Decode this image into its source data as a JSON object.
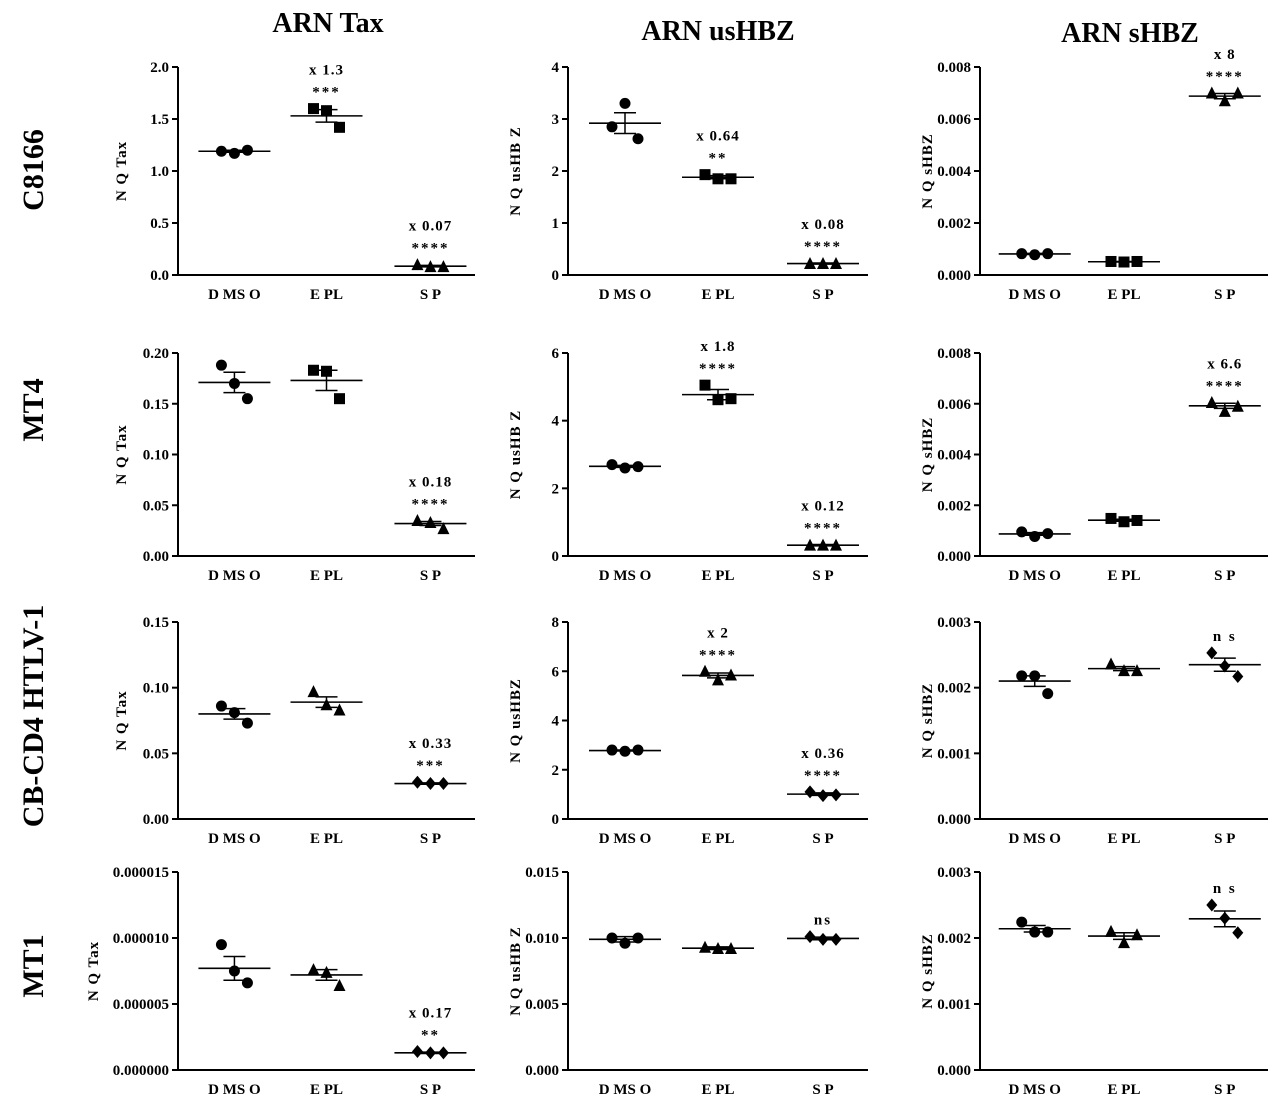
{
  "figure": {
    "column_titles": [
      "ARN Tax",
      "ARN usHBZ",
      "ARN sHBZ"
    ],
    "row_titles": [
      "C8166",
      "MT4",
      "CB-CD4 HTLV-1",
      "MT1"
    ]
  },
  "chart_data": [
    {
      "row": "C8166",
      "col": "ARN Tax",
      "type": "scatter",
      "ylabel": "N Q Tax",
      "ylim": [
        0,
        2.0
      ],
      "ytick_labels": [
        "0.0",
        "0.5",
        "1.0",
        "1.5",
        "2.0"
      ],
      "categories": [
        "D MS O",
        "E PL",
        "S P"
      ],
      "series": [
        {
          "category": "D MS O",
          "marker": "circle",
          "points": [
            1.19,
            1.17,
            1.2
          ],
          "mean": 1.19,
          "sem": 0.01
        },
        {
          "category": "E PL",
          "marker": "square",
          "points": [
            1.6,
            1.58,
            1.42
          ],
          "mean": 1.53,
          "sem": 0.06,
          "fold": "x 1.3",
          "sig": "***"
        },
        {
          "category": "S P",
          "marker": "triangle",
          "points": [
            0.1,
            0.08,
            0.08
          ],
          "mean": 0.085,
          "sem": 0.007,
          "fold": "x 0.07",
          "sig": "****"
        }
      ]
    },
    {
      "row": "C8166",
      "col": "ARN usHBZ",
      "type": "scatter",
      "ylabel": "N Q usHB Z",
      "ylim": [
        0,
        4
      ],
      "ytick_labels": [
        "0",
        "1",
        "2",
        "3",
        "4"
      ],
      "categories": [
        "D MS O",
        "E PL",
        "S P"
      ],
      "series": [
        {
          "category": "D MS O",
          "marker": "circle",
          "points": [
            2.85,
            3.3,
            2.62
          ],
          "mean": 2.92,
          "sem": 0.2
        },
        {
          "category": "E PL",
          "marker": "square",
          "points": [
            1.93,
            1.85,
            1.85
          ],
          "mean": 1.88,
          "sem": 0.03,
          "fold": "x 0.64",
          "sig": "**"
        },
        {
          "category": "S P",
          "marker": "triangle",
          "points": [
            0.22,
            0.22,
            0.22
          ],
          "mean": 0.22,
          "sem": 0.01,
          "fold": "x 0.08",
          "sig": "****"
        }
      ]
    },
    {
      "row": "C8166",
      "col": "ARN sHBZ",
      "type": "scatter",
      "ylabel": "N Q sHBZ",
      "ylim": [
        0,
        0.008
      ],
      "ytick_labels": [
        "0.000",
        "0.002",
        "0.004",
        "0.006",
        "0.008"
      ],
      "categories": [
        "D MS O",
        "E PL",
        "S P"
      ],
      "series": [
        {
          "category": "D MS O",
          "marker": "circle",
          "points": [
            0.00082,
            0.00078,
            0.00082
          ],
          "mean": 0.00081,
          "sem": 2e-05
        },
        {
          "category": "E PL",
          "marker": "square",
          "points": [
            0.00052,
            0.0005,
            0.00052
          ],
          "mean": 0.00051,
          "sem": 1e-05
        },
        {
          "category": "S P",
          "marker": "triangle",
          "points": [
            0.007,
            0.0067,
            0.007
          ],
          "mean": 0.00688,
          "sem": 0.0001,
          "fold": "x 8",
          "sig": "****"
        }
      ]
    },
    {
      "row": "MT4",
      "col": "ARN Tax",
      "type": "scatter",
      "ylabel": "N Q Tax",
      "ylim": [
        0,
        0.2
      ],
      "ytick_labels": [
        "0.00",
        "0.05",
        "0.10",
        "0.15",
        "0.20"
      ],
      "categories": [
        "D MS O",
        "E PL",
        "S P"
      ],
      "series": [
        {
          "category": "D MS O",
          "marker": "circle",
          "points": [
            0.188,
            0.17,
            0.155
          ],
          "mean": 0.171,
          "sem": 0.01
        },
        {
          "category": "E PL",
          "marker": "square",
          "points": [
            0.183,
            0.182,
            0.155
          ],
          "mean": 0.173,
          "sem": 0.01
        },
        {
          "category": "S P",
          "marker": "triangle",
          "points": [
            0.035,
            0.033,
            0.027
          ],
          "mean": 0.032,
          "sem": 0.002,
          "fold": "x 0.18",
          "sig": "****"
        }
      ]
    },
    {
      "row": "MT4",
      "col": "ARN usHBZ",
      "type": "scatter",
      "ylabel": "N Q usHB Z",
      "ylim": [
        0,
        6
      ],
      "ytick_labels": [
        "0",
        "2",
        "4",
        "6"
      ],
      "categories": [
        "D MS O",
        "E PL",
        "S P"
      ],
      "series": [
        {
          "category": "D MS O",
          "marker": "circle",
          "points": [
            2.7,
            2.6,
            2.64
          ],
          "mean": 2.65,
          "sem": 0.03
        },
        {
          "category": "E PL",
          "marker": "square",
          "points": [
            5.05,
            4.62,
            4.65
          ],
          "mean": 4.77,
          "sem": 0.15,
          "fold": "x 1.8",
          "sig": "****"
        },
        {
          "category": "S P",
          "marker": "triangle",
          "points": [
            0.32,
            0.32,
            0.32
          ],
          "mean": 0.32,
          "sem": 0.02,
          "fold": "x 0.12",
          "sig": "****"
        }
      ]
    },
    {
      "row": "MT4",
      "col": "ARN sHBZ",
      "type": "scatter",
      "ylabel": "N Q sHBZ",
      "ylim": [
        0,
        0.008
      ],
      "ytick_labels": [
        "0.000",
        "0.002",
        "0.004",
        "0.006",
        "0.008"
      ],
      "categories": [
        "D MS O",
        "E PL",
        "S P"
      ],
      "series": [
        {
          "category": "D MS O",
          "marker": "circle",
          "points": [
            0.00095,
            0.00077,
            0.00088
          ],
          "mean": 0.00087,
          "sem": 5e-05
        },
        {
          "category": "E PL",
          "marker": "square",
          "points": [
            0.00148,
            0.00135,
            0.0014
          ],
          "mean": 0.00141,
          "sem": 4e-05
        },
        {
          "category": "S P",
          "marker": "triangle",
          "points": [
            0.00605,
            0.0057,
            0.0059
          ],
          "mean": 0.00592,
          "sem": 0.0001,
          "fold": "x 6.6",
          "sig": "****"
        }
      ]
    },
    {
      "row": "CB-CD4 HTLV-1",
      "col": "ARN Tax",
      "type": "scatter",
      "ylabel": "N Q Tax",
      "ylim": [
        0,
        0.15
      ],
      "ytick_labels": [
        "0.00",
        "0.05",
        "0.10",
        "0.15"
      ],
      "categories": [
        "D MS O",
        "E PL",
        "S P"
      ],
      "series": [
        {
          "category": "D MS O",
          "marker": "circle",
          "points": [
            0.086,
            0.081,
            0.073
          ],
          "mean": 0.08,
          "sem": 0.004
        },
        {
          "category": "E PL",
          "marker": "triangle",
          "points": [
            0.097,
            0.087,
            0.083
          ],
          "mean": 0.089,
          "sem": 0.004
        },
        {
          "category": "S P",
          "marker": "diamond",
          "points": [
            0.028,
            0.027,
            0.027
          ],
          "mean": 0.027,
          "sem": 0.0005,
          "fold": "x 0.33",
          "sig": "***"
        }
      ]
    },
    {
      "row": "CB-CD4 HTLV-1",
      "col": "ARN usHBZ",
      "type": "scatter",
      "ylabel": "N Q usHBZ",
      "ylim": [
        0,
        8
      ],
      "ytick_labels": [
        "0",
        "2",
        "4",
        "6",
        "8"
      ],
      "categories": [
        "D MS O",
        "E PL",
        "S P"
      ],
      "series": [
        {
          "category": "D MS O",
          "marker": "circle",
          "points": [
            2.8,
            2.75,
            2.8
          ],
          "mean": 2.78,
          "sem": 0.02
        },
        {
          "category": "E PL",
          "marker": "triangle",
          "points": [
            6.0,
            5.65,
            5.85
          ],
          "mean": 5.83,
          "sem": 0.1,
          "fold": "x 2",
          "sig": "****"
        },
        {
          "category": "S P",
          "marker": "diamond",
          "points": [
            1.1,
            0.95,
            0.98
          ],
          "mean": 1.01,
          "sem": 0.05,
          "fold": "x 0.36",
          "sig": "****"
        }
      ]
    },
    {
      "row": "CB-CD4 HTLV-1",
      "col": "ARN sHBZ",
      "type": "scatter",
      "ylabel": "N Q sHBZ",
      "ylim": [
        0,
        0.003
      ],
      "ytick_labels": [
        "0.000",
        "0.001",
        "0.002",
        "0.003"
      ],
      "categories": [
        "D MS O",
        "E PL",
        "S P"
      ],
      "series": [
        {
          "category": "D MS O",
          "marker": "circle",
          "points": [
            0.00218,
            0.00218,
            0.00191
          ],
          "mean": 0.0021,
          "sem": 8e-05
        },
        {
          "category": "E PL",
          "marker": "triangle",
          "points": [
            0.00236,
            0.00226,
            0.00226
          ],
          "mean": 0.00229,
          "sem": 3e-05
        },
        {
          "category": "S P",
          "marker": "diamond",
          "points": [
            0.00253,
            0.00233,
            0.00217
          ],
          "mean": 0.00235,
          "sem": 0.0001,
          "sig": "n s"
        }
      ]
    },
    {
      "row": "MT1",
      "col": "ARN Tax",
      "type": "scatter",
      "ylabel": "N Q Tax",
      "ylim": [
        0,
        1.5e-05
      ],
      "ytick_labels": [
        "0.000000",
        "0.000005",
        "0.000010",
        "0.000015"
      ],
      "categories": [
        "D MS O",
        "E PL",
        "S P"
      ],
      "series": [
        {
          "category": "D MS O",
          "marker": "circle",
          "points": [
            9.5e-06,
            7.5e-06,
            6.6e-06
          ],
          "mean": 7.7e-06,
          "sem": 9e-07
        },
        {
          "category": "E PL",
          "marker": "triangle",
          "points": [
            7.6e-06,
            7.4e-06,
            6.4e-06
          ],
          "mean": 7.2e-06,
          "sem": 4e-07
        },
        {
          "category": "S P",
          "marker": "diamond",
          "points": [
            1.4e-06,
            1.3e-06,
            1.3e-06
          ],
          "mean": 1.3e-06,
          "sem": 5e-08,
          "fold": "x 0.17",
          "sig": "**"
        }
      ]
    },
    {
      "row": "MT1",
      "col": "ARN usHBZ",
      "type": "scatter",
      "ylabel": "N Q usHB Z",
      "ylim": [
        0,
        0.015
      ],
      "ytick_labels": [
        "0.000",
        "0.005",
        "0.010",
        "0.015"
      ],
      "categories": [
        "D MS O",
        "E PL",
        "S P"
      ],
      "series": [
        {
          "category": "D MS O",
          "marker": "circle",
          "points": [
            0.01,
            0.0096,
            0.01
          ],
          "mean": 0.0099,
          "sem": 0.0002
        },
        {
          "category": "E PL",
          "marker": "triangle",
          "points": [
            0.0093,
            0.0092,
            0.0092
          ],
          "mean": 0.00923,
          "sem": 0.0001
        },
        {
          "category": "S P",
          "marker": "diamond",
          "points": [
            0.0101,
            0.0099,
            0.0099
          ],
          "mean": 0.00997,
          "sem": 0.0001,
          "sig": "ns"
        }
      ]
    },
    {
      "row": "MT1",
      "col": "ARN sHBZ",
      "type": "scatter",
      "ylabel": "N Q sHBZ",
      "ylim": [
        0,
        0.003
      ],
      "ytick_labels": [
        "0.000",
        "0.001",
        "0.002",
        "0.003"
      ],
      "categories": [
        "D MS O",
        "E PL",
        "S P"
      ],
      "series": [
        {
          "category": "D MS O",
          "marker": "circle",
          "points": [
            0.00224,
            0.00209,
            0.00209
          ],
          "mean": 0.00214,
          "sem": 5e-05
        },
        {
          "category": "E PL",
          "marker": "triangle",
          "points": [
            0.0021,
            0.00193,
            0.00205
          ],
          "mean": 0.00203,
          "sem": 5e-05
        },
        {
          "category": "S P",
          "marker": "diamond",
          "points": [
            0.0025,
            0.0023,
            0.00208
          ],
          "mean": 0.00229,
          "sem": 0.00012,
          "sig": "n s"
        }
      ]
    }
  ]
}
